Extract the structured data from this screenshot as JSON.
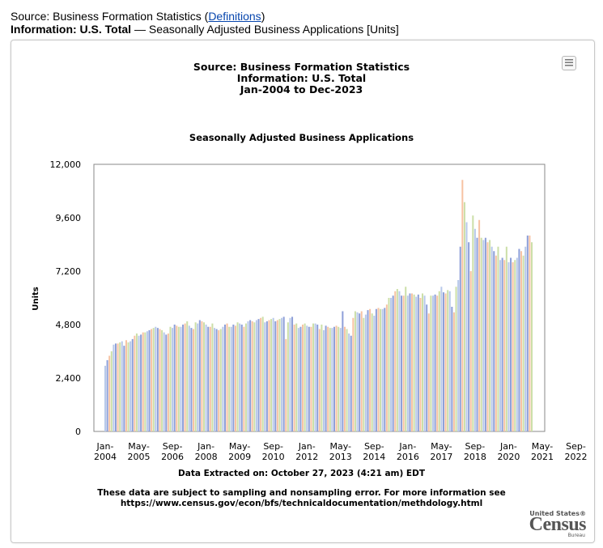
{
  "header": {
    "source_prefix": "Source: Business Formation Statistics (",
    "definitions_link": "Definitions",
    "source_suffix": ")",
    "line2_bold": "Information: U.S. Total",
    "line2_rest": " — Seasonally Adjusted Business Applications [Units]"
  },
  "chart_title": {
    "line1": "Source: Business Formation Statistics",
    "line2": "Information: U.S. Total",
    "line3": "Jan-2004 to Dec-2023",
    "subtitle": "Seasonally Adjusted Business Applications"
  },
  "footer": {
    "extracted": "Data Extracted on: October 27, 2023 (4:21 am) EDT",
    "note_line1": "These data are subject to sampling and nonsampling error. For more information see",
    "note_line2": "https://www.census.gov/econ/bfs/technicaldocumentation/methdology.html"
  },
  "logo": {
    "top": "United States®",
    "main": "Census",
    "bottom": "Bureau"
  },
  "menu_icon": "hamburger-menu-icon",
  "chart_data": {
    "type": "bar",
    "title": "Seasonally Adjusted Business Applications",
    "xlabel": "",
    "ylabel": "Units",
    "ylim": [
      0,
      12000
    ],
    "yticks": [
      0,
      2400,
      4800,
      7200,
      9600,
      12000
    ],
    "ytick_labels": [
      "0",
      "2,400",
      "4,800",
      "7,200",
      "9,600",
      "12,000"
    ],
    "xtick_labels": [
      [
        "Jan-",
        "2004"
      ],
      [
        "May-",
        "2005"
      ],
      [
        "Sep-",
        "2006"
      ],
      [
        "Jan-",
        "2008"
      ],
      [
        "May-",
        "2009"
      ],
      [
        "Sep-",
        "2010"
      ],
      [
        "Jan-",
        "2012"
      ],
      [
        "May-",
        "2013"
      ],
      [
        "Sep-",
        "2014"
      ],
      [
        "Jan-",
        "2016"
      ],
      [
        "May-",
        "2017"
      ],
      [
        "Sep-",
        "2018"
      ],
      [
        "Jan-",
        "2020"
      ],
      [
        "May-",
        "2021"
      ],
      [
        "Sep-",
        "2022"
      ]
    ],
    "colors": [
      "#b8c9ea",
      "#8e9fd8",
      "#f7c3a3",
      "#ccdfa8"
    ],
    "series": [
      {
        "name": "Units",
        "start": "2004-01",
        "values": [
          2950,
          3200,
          3400,
          3600,
          3900,
          3950,
          3950,
          4000,
          4050,
          3850,
          4100,
          4000,
          4050,
          4150,
          4300,
          4400,
          4300,
          4350,
          4450,
          4450,
          4500,
          4550,
          4600,
          4650,
          4700,
          4650,
          4600,
          4550,
          4450,
          4350,
          4400,
          4700,
          4650,
          4800,
          4750,
          4700,
          4700,
          4800,
          4850,
          4950,
          4750,
          4650,
          4600,
          4900,
          4850,
          5000,
          4950,
          4900,
          4800,
          4700,
          4700,
          4850,
          4650,
          4600,
          4550,
          4600,
          4700,
          4800,
          4850,
          4700,
          4700,
          4800,
          4750,
          4900,
          4850,
          4800,
          4700,
          4850,
          4950,
          5000,
          4950,
          4900,
          5000,
          5050,
          5100,
          5150,
          4900,
          4950,
          5000,
          5050,
          5100,
          4950,
          5000,
          5050,
          5100,
          5150,
          4150,
          4900,
          5100,
          5150,
          4800,
          4850,
          4650,
          4700,
          4800,
          4850,
          4750,
          4700,
          4700,
          4850,
          4850,
          4800,
          4600,
          4800,
          4550,
          4750,
          4700,
          4650,
          4650,
          4700,
          4750,
          4700,
          4650,
          5400,
          4700,
          4600,
          4400,
          4300,
          5100,
          5400,
          5350,
          5300,
          5400,
          5100,
          5250,
          5450,
          5500,
          5300,
          5200,
          5500,
          5550,
          5500,
          5500,
          5550,
          5700,
          6000,
          6000,
          6100,
          6300,
          6400,
          6300,
          6100,
          6100,
          6500,
          6100,
          6200,
          6200,
          6150,
          6050,
          6150,
          6000,
          6200,
          6100,
          5700,
          5300,
          6100,
          6100,
          6150,
          6100,
          6300,
          6500,
          6250,
          6200,
          6350,
          6300,
          5600,
          5350,
          6500,
          6800,
          8300,
          11300,
          10300,
          9400,
          8500,
          7200,
          9700,
          9100,
          8700,
          9500,
          8700,
          8600,
          8700,
          8500,
          8600,
          8300,
          8100,
          7900,
          8300,
          7700,
          7800,
          7700,
          8300,
          7600,
          7800,
          7600,
          7700,
          7800,
          8200,
          8100,
          7900,
          8300,
          8800,
          8800,
          8500
        ]
      }
    ]
  }
}
